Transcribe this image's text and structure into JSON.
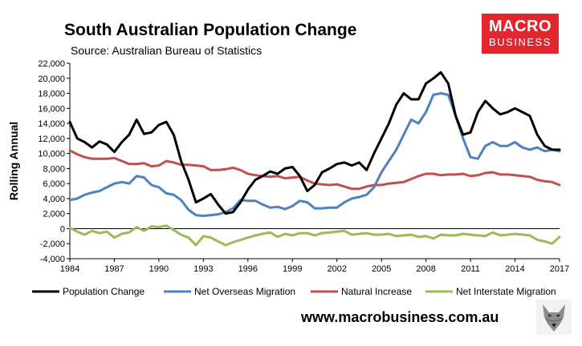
{
  "header": {
    "title": "South Australian Population Change",
    "subtitle": "Source: Australian Bureau of Statistics"
  },
  "logo": {
    "line1": "MACRO",
    "line2": "BUSINESS",
    "color": "#e3262e"
  },
  "footer": {
    "url": "www.macrobusiness.com.au"
  },
  "wolf_icon": "wolf-logo-icon",
  "chart_data": {
    "type": "line",
    "ylabel": "Rolling Annual",
    "xlim": [
      1984,
      2017
    ],
    "ylim": [
      -4000,
      22000
    ],
    "yticks": [
      -4000,
      -2000,
      0,
      2000,
      4000,
      6000,
      8000,
      10000,
      12000,
      14000,
      16000,
      18000,
      20000,
      22000
    ],
    "ytick_labels": [
      "-4,000",
      "-2,000",
      "0",
      "2,000",
      "4,000",
      "6,000",
      "8,000",
      "10,000",
      "12,000",
      "14,000",
      "16,000",
      "18,000",
      "20,000",
      "22,000"
    ],
    "xticks": [
      1984,
      1987,
      1990,
      1993,
      1996,
      1999,
      2002,
      2005,
      2008,
      2011,
      2014,
      2017
    ],
    "xtick_labels": [
      "1984",
      "1987",
      "1990",
      "1993",
      "1996",
      "1999",
      "2002",
      "2005",
      "2008",
      "2011",
      "2014",
      "2017"
    ],
    "grid": false,
    "legend": "bottom",
    "series": [
      {
        "name": "Population Change",
        "color": "#000000",
        "x": [
          1984,
          1984.5,
          1985,
          1985.5,
          1986,
          1986.5,
          1987,
          1987.5,
          1988,
          1988.5,
          1989,
          1989.5,
          1990,
          1990.5,
          1991,
          1991.5,
          1992,
          1992.5,
          1993,
          1993.5,
          1994,
          1994.5,
          1995,
          1995.5,
          1996,
          1996.5,
          1997,
          1997.5,
          1998,
          1998.5,
          1999,
          1999.5,
          2000,
          2000.5,
          2001,
          2001.5,
          2002,
          2002.5,
          2003,
          2003.5,
          2004,
          2004.5,
          2005,
          2005.5,
          2006,
          2006.5,
          2007,
          2007.5,
          2008,
          2008.5,
          2009,
          2009.5,
          2010,
          2010.5,
          2011,
          2011.5,
          2012,
          2012.5,
          2013,
          2013.5,
          2014,
          2014.5,
          2015,
          2015.5,
          2016,
          2016.5,
          2017
        ],
        "y": [
          14200,
          12000,
          11500,
          10800,
          11600,
          11200,
          10200,
          11500,
          12500,
          14500,
          12600,
          12800,
          13800,
          14200,
          12500,
          9000,
          6500,
          3500,
          4000,
          4600,
          3200,
          2000,
          2200,
          3500,
          5200,
          6500,
          7000,
          7600,
          7300,
          8000,
          8200,
          7000,
          5000,
          5800,
          7500,
          8000,
          8600,
          8800,
          8400,
          8800,
          7800,
          10000,
          12000,
          14000,
          16500,
          18000,
          17200,
          17200,
          19300,
          20000,
          20800,
          19300,
          15000,
          12500,
          12800,
          15500,
          17000,
          16000,
          15200,
          15500,
          16000,
          15500,
          15000,
          12500,
          11000,
          10500,
          10500
        ]
      },
      {
        "name": "Net Overseas Migration",
        "color": "#4f81bd",
        "x": [
          1984,
          1984.5,
          1985,
          1985.5,
          1986,
          1986.5,
          1987,
          1987.5,
          1988,
          1988.5,
          1989,
          1989.5,
          1990,
          1990.5,
          1991,
          1991.5,
          1992,
          1992.5,
          1993,
          1993.5,
          1994,
          1994.5,
          1995,
          1995.5,
          1996,
          1996.5,
          1997,
          1997.5,
          1998,
          1998.5,
          1999,
          1999.5,
          2000,
          2000.5,
          2001,
          2001.5,
          2002,
          2002.5,
          2003,
          2003.5,
          2004,
          2004.5,
          2005,
          2005.5,
          2006,
          2006.5,
          2007,
          2007.5,
          2008,
          2008.5,
          2009,
          2009.5,
          2010,
          2010.5,
          2011,
          2011.5,
          2012,
          2012.5,
          2013,
          2013.5,
          2014,
          2014.5,
          2015,
          2015.5,
          2016,
          2016.5,
          2017
        ],
        "y": [
          3800,
          4000,
          4500,
          4800,
          5000,
          5500,
          6000,
          6200,
          6000,
          7000,
          6800,
          5800,
          5500,
          4700,
          4500,
          3800,
          2500,
          1800,
          1700,
          1800,
          1900,
          2200,
          2700,
          3800,
          3700,
          3700,
          3200,
          2800,
          2900,
          2600,
          3000,
          3700,
          3500,
          2700,
          2700,
          2800,
          2800,
          3500,
          4000,
          4200,
          4500,
          5500,
          7500,
          9000,
          10500,
          12500,
          14500,
          14000,
          15500,
          17800,
          18000,
          17800,
          15000,
          12000,
          9500,
          9300,
          11000,
          11500,
          11000,
          11000,
          11500,
          10800,
          10500,
          10800,
          10300,
          10500,
          10300
        ]
      },
      {
        "name": "Natural Increase",
        "color": "#c0504d",
        "x": [
          1984,
          1984.5,
          1985,
          1985.5,
          1986,
          1986.5,
          1987,
          1987.5,
          1988,
          1988.5,
          1989,
          1989.5,
          1990,
          1990.5,
          1991,
          1991.5,
          1992,
          1992.5,
          1993,
          1993.5,
          1994,
          1994.5,
          1995,
          1995.5,
          1996,
          1996.5,
          1997,
          1997.5,
          1998,
          1998.5,
          1999,
          1999.5,
          2000,
          2000.5,
          2001,
          2001.5,
          2002,
          2002.5,
          2003,
          2003.5,
          2004,
          2004.5,
          2005,
          2005.5,
          2006,
          2006.5,
          2007,
          2007.5,
          2008,
          2008.5,
          2009,
          2009.5,
          2010,
          2010.5,
          2011,
          2011.5,
          2012,
          2012.5,
          2013,
          2013.5,
          2014,
          2014.5,
          2015,
          2015.5,
          2016,
          2016.5,
          2017
        ],
        "y": [
          10400,
          9900,
          9500,
          9300,
          9300,
          9300,
          9400,
          9000,
          8600,
          8600,
          8700,
          8300,
          8400,
          9000,
          8800,
          8500,
          8500,
          8400,
          8300,
          7800,
          7800,
          7900,
          8100,
          7800,
          7300,
          7100,
          7000,
          6900,
          7000,
          6700,
          6800,
          6900,
          6400,
          6000,
          5900,
          5800,
          5900,
          5600,
          5300,
          5300,
          5600,
          5800,
          5800,
          6000,
          6100,
          6200,
          6600,
          7000,
          7300,
          7300,
          7100,
          7200,
          7200,
          7300,
          7000,
          7100,
          7400,
          7500,
          7200,
          7200,
          7100,
          7000,
          6900,
          6500,
          6300,
          6200,
          5800
        ]
      },
      {
        "name": "Net Interstate Migration",
        "color": "#9bbb59",
        "x": [
          1984,
          1984.5,
          1985,
          1985.5,
          1986,
          1986.5,
          1987,
          1987.5,
          1988,
          1988.5,
          1989,
          1989.5,
          1990,
          1990.5,
          1991,
          1991.5,
          1992,
          1992.5,
          1993,
          1993.5,
          1994,
          1994.5,
          1995,
          1995.5,
          1996,
          1996.5,
          1997,
          1997.5,
          1998,
          1998.5,
          1999,
          1999.5,
          2000,
          2000.5,
          2001,
          2001.5,
          2002,
          2002.5,
          2003,
          2003.5,
          2004,
          2004.5,
          2005,
          2005.5,
          2006,
          2006.5,
          2007,
          2007.5,
          2008,
          2008.5,
          2009,
          2009.5,
          2010,
          2010.5,
          2011,
          2011.5,
          2012,
          2012.5,
          2013,
          2013.5,
          2014,
          2014.5,
          2015,
          2015.5,
          2016,
          2016.5,
          2017
        ],
        "y": [
          100,
          -400,
          -800,
          -300,
          -600,
          -400,
          -1200,
          -700,
          -500,
          200,
          -300,
          300,
          200,
          400,
          -200,
          -800,
          -1200,
          -2200,
          -1000,
          -1200,
          -1700,
          -2200,
          -1800,
          -1500,
          -1200,
          -900,
          -700,
          -500,
          -1100,
          -700,
          -900,
          -600,
          -600,
          -900,
          -600,
          -500,
          -400,
          -300,
          -800,
          -700,
          -600,
          -800,
          -800,
          -700,
          -1000,
          -900,
          -800,
          -1100,
          -1000,
          -1300,
          -800,
          -900,
          -900,
          -700,
          -800,
          -900,
          -1000,
          -500,
          -900,
          -800,
          -700,
          -800,
          -900,
          -1500,
          -1700,
          -2000,
          -1100
        ]
      }
    ]
  }
}
